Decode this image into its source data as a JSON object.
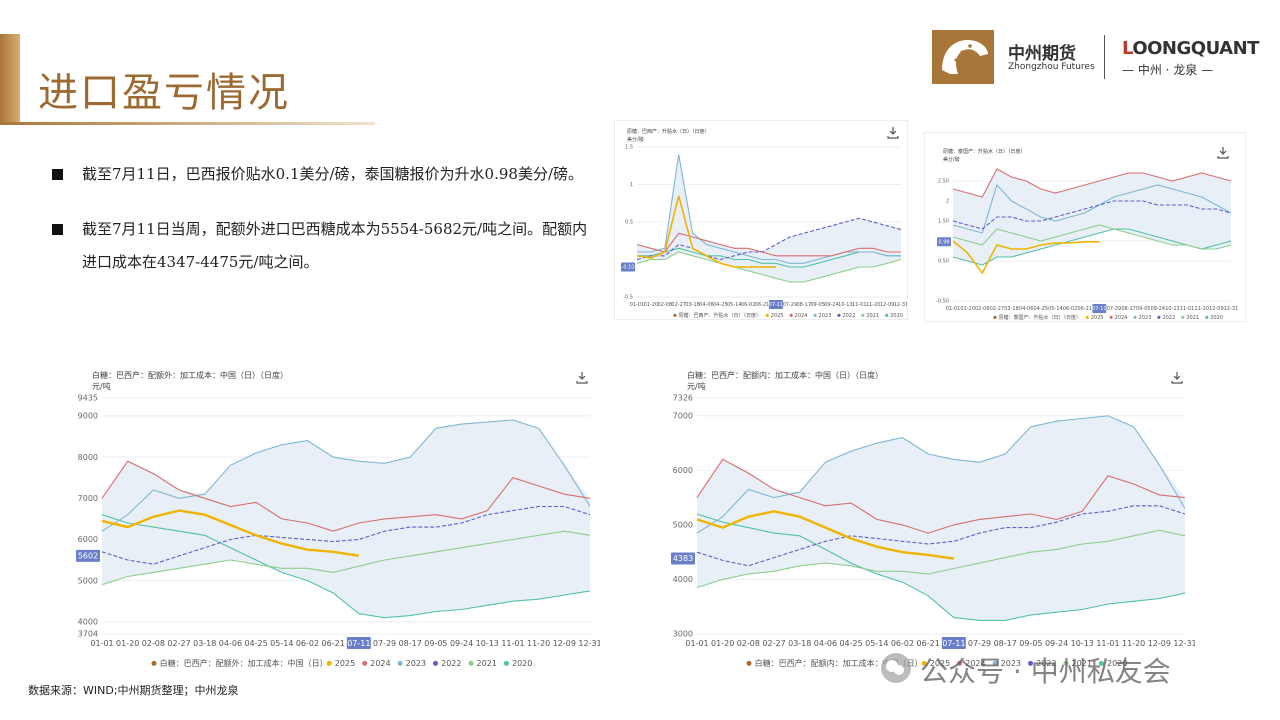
{
  "title": "进口盈亏情况",
  "brand": {
    "cn": "中州期货",
    "en": "Zhongzhou Futures",
    "lq_first": "L",
    "lq_rest": "OONGQUANT",
    "lq_cn": "— 中州 · 龙泉 —"
  },
  "bullets": [
    "截至7月11日，巴西报价贴水0.1美分/磅，泰国糖报价为升水0.98美分/磅。",
    "截至7月11日当周，配额外进口巴西糖成本为5554-5682元/吨之间。配额内进口成本在4347-4475元/吨之间。"
  ],
  "source": "数据来源：WIND;中州期货整理；中州龙泉",
  "wechat": "公众号 · 中州私友会",
  "colors": {
    "2025": "#f0b400",
    "2024": "#d86f6f",
    "2023": "#7fb7d4",
    "2022": "#5f5fc8",
    "2021": "#8ccf8c",
    "2020": "#4fc2a8",
    "band": "#e4ebf5",
    "accent": "#a9763a"
  },
  "chart_data": [
    {
      "type": "line",
      "title": "原糖：巴西产：升贴水（日）（日度）",
      "ylabel": "美分/磅",
      "ylim": [
        -0.5,
        1.5
      ],
      "yticks": [
        "1.5",
        "1",
        "0.5",
        "-0.5"
      ],
      "current_value": "-0.10",
      "current_date": "07-11",
      "x_labels": [
        "01-01",
        "01-20",
        "02-08",
        "02-27",
        "03-18",
        "04-06",
        "04-25",
        "05-14",
        "06-02",
        "06-21",
        "07-11",
        "07-29",
        "08-17",
        "09-05",
        "09-24",
        "10-13",
        "11-01",
        "11-20",
        "12-09",
        "12-31"
      ],
      "series": [
        {
          "name": "2025",
          "values": [
            0.05,
            0.02,
            0.1,
            0.85,
            0.15,
            0.05,
            -0.05,
            -0.1,
            -0.1,
            -0.1,
            -0.1
          ]
        },
        {
          "name": "2024",
          "values": [
            0.2,
            0.15,
            0.1,
            0.35,
            0.3,
            0.25,
            0.2,
            0.15,
            0.15,
            0.1,
            0.05,
            0.05,
            0.05,
            0.05,
            0.05,
            0.1,
            0.15,
            0.15,
            0.1,
            0.1
          ]
        },
        {
          "name": "2023",
          "values": [
            0.1,
            0.1,
            0.15,
            1.4,
            0.35,
            0.2,
            0.15,
            0.1,
            0.05,
            0.0,
            0.0,
            -0.05,
            -0.05,
            0.0,
            0.05,
            0.1,
            0.1,
            0.1,
            0.05,
            0.05
          ]
        },
        {
          "name": "2022",
          "values": [
            0.0,
            0.05,
            0.05,
            0.2,
            0.15,
            0.05,
            0.0,
            0.05,
            0.1,
            0.1,
            0.2,
            0.3,
            0.35,
            0.4,
            0.45,
            0.5,
            0.55,
            0.5,
            0.45,
            0.4
          ]
        },
        {
          "name": "2021",
          "values": [
            -0.05,
            0.0,
            0.0,
            0.1,
            0.05,
            0.0,
            -0.05,
            -0.1,
            -0.15,
            -0.2,
            -0.25,
            -0.3,
            -0.3,
            -0.25,
            -0.2,
            -0.15,
            -0.1,
            -0.1,
            -0.05,
            0.0
          ]
        },
        {
          "name": "2020",
          "values": [
            0.05,
            0.05,
            0.1,
            0.15,
            0.1,
            0.05,
            0.05,
            0.0,
            0.0,
            -0.05,
            -0.05,
            -0.1,
            -0.1,
            -0.05,
            0.0,
            0.05,
            0.1,
            0.1,
            0.05,
            0.05
          ]
        }
      ]
    },
    {
      "type": "line",
      "title": "原糖：泰国产：升贴水（日）（日度）",
      "ylabel": "美分/磅",
      "ylim": [
        -0.5,
        3
      ],
      "yticks": [
        "2.50",
        "2",
        "1.50",
        "1",
        "0.50",
        "-0.50"
      ],
      "current_value": "0.98",
      "current_date": "07-11",
      "x_labels": [
        "01-01",
        "01-20",
        "02-08",
        "02-27",
        "03-18",
        "04-06",
        "04-25",
        "05-14",
        "06-02",
        "06-21",
        "07-11",
        "07-29",
        "08-17",
        "09-05",
        "09-24",
        "10-13",
        "11-01",
        "11-20",
        "12-09",
        "12-31"
      ],
      "series": [
        {
          "name": "2025",
          "values": [
            1.0,
            0.7,
            0.2,
            0.9,
            0.8,
            0.8,
            0.9,
            0.95,
            0.95,
            0.98,
            0.98
          ]
        },
        {
          "name": "2024",
          "values": [
            2.3,
            2.2,
            2.1,
            2.8,
            2.6,
            2.5,
            2.3,
            2.2,
            2.3,
            2.4,
            2.5,
            2.6,
            2.7,
            2.7,
            2.6,
            2.5,
            2.6,
            2.7,
            2.6,
            2.5
          ]
        },
        {
          "name": "2023",
          "values": [
            1.4,
            1.3,
            1.2,
            2.4,
            2.0,
            1.8,
            1.6,
            1.5,
            1.6,
            1.7,
            1.9,
            2.1,
            2.2,
            2.3,
            2.4,
            2.3,
            2.2,
            2.1,
            1.9,
            1.7
          ]
        },
        {
          "name": "2022",
          "values": [
            1.5,
            1.4,
            1.3,
            1.6,
            1.6,
            1.5,
            1.5,
            1.6,
            1.7,
            1.8,
            1.9,
            2.0,
            2.0,
            2.0,
            1.9,
            1.9,
            1.9,
            1.8,
            1.8,
            1.7
          ]
        },
        {
          "name": "2021",
          "values": [
            1.1,
            1.0,
            0.9,
            1.3,
            1.2,
            1.1,
            1.0,
            1.1,
            1.2,
            1.3,
            1.4,
            1.3,
            1.2,
            1.1,
            1.0,
            0.9,
            0.9,
            0.8,
            0.8,
            0.9
          ]
        },
        {
          "name": "2020",
          "values": [
            0.6,
            0.5,
            0.4,
            0.6,
            0.6,
            0.7,
            0.8,
            0.9,
            1.0,
            1.1,
            1.2,
            1.3,
            1.3,
            1.2,
            1.1,
            1.0,
            0.9,
            0.8,
            0.9,
            1.0
          ]
        }
      ]
    },
    {
      "type": "line",
      "title": "白糖：巴西产：配额外：加工成本：中国（日）（日度）",
      "ylabel": "元/吨",
      "ylim": [
        3704,
        9435
      ],
      "yticks": [
        "9435",
        "9000",
        "8000",
        "7000",
        "6000",
        "5000",
        "4000",
        "3704"
      ],
      "current_value": "5602",
      "current_date": "07-11",
      "x_labels": [
        "01-01",
        "01-20",
        "02-08",
        "02-27",
        "03-18",
        "04-06",
        "04-25",
        "05-14",
        "06-02",
        "06-21",
        "07-11",
        "07-29",
        "08-17",
        "09-05",
        "09-24",
        "10-13",
        "11-01",
        "11-20",
        "12-09",
        "12-31"
      ],
      "legend": [
        "白糖：巴西产：配额外：加工成本：中国（日）",
        "2025",
        "2024",
        "2023",
        "2022",
        "2021",
        "2020"
      ],
      "series": [
        {
          "name": "2025",
          "values": [
            6450,
            6300,
            6550,
            6700,
            6600,
            6350,
            6100,
            5900,
            5750,
            5700,
            5602
          ]
        },
        {
          "name": "2024",
          "values": [
            7000,
            7900,
            7600,
            7200,
            7000,
            6800,
            6900,
            6500,
            6400,
            6200,
            6400,
            6500,
            6550,
            6600,
            6500,
            6700,
            7500,
            7300,
            7100,
            7000
          ]
        },
        {
          "name": "2023",
          "values": [
            6200,
            6600,
            7200,
            7000,
            7100,
            7800,
            8100,
            8300,
            8400,
            8000,
            7900,
            7850,
            8000,
            8700,
            8800,
            8850,
            8900,
            8700,
            7800,
            6800
          ]
        },
        {
          "name": "2022",
          "values": [
            5700,
            5500,
            5400,
            5600,
            5800,
            6000,
            6100,
            6050,
            6000,
            5950,
            6000,
            6200,
            6300,
            6300,
            6400,
            6600,
            6700,
            6800,
            6800,
            6600
          ]
        },
        {
          "name": "2021",
          "values": [
            4900,
            5100,
            5200,
            5300,
            5400,
            5500,
            5400,
            5300,
            5300,
            5200,
            5350,
            5500,
            5600,
            5700,
            5800,
            5900,
            6000,
            6100,
            6200,
            6100
          ]
        },
        {
          "name": "2020",
          "values": [
            6600,
            6400,
            6300,
            6200,
            6100,
            5800,
            5500,
            5200,
            5000,
            4700,
            4200,
            4100,
            4150,
            4250,
            4300,
            4400,
            4500,
            4550,
            4650,
            4750
          ]
        }
      ]
    },
    {
      "type": "line",
      "title": "白糖：巴西产：配额内：加工成本：中国（日）（日度）",
      "ylabel": "元/吨",
      "ylim": [
        3000,
        7326
      ],
      "yticks": [
        "7326",
        "7000",
        "6000",
        "5000",
        "4000",
        "3000"
      ],
      "current_value": "4383",
      "current_date": "07-11",
      "x_labels": [
        "01-01",
        "01-20",
        "02-08",
        "02-27",
        "03-18",
        "04-06",
        "04-25",
        "05-14",
        "06-02",
        "06-21",
        "07-11",
        "07-29",
        "08-17",
        "09-05",
        "09-24",
        "10-13",
        "11-01",
        "11-20",
        "12-09",
        "12-31"
      ],
      "legend": [
        "白糖：巴西产：配额内：加工成本：中国（日）",
        "2025",
        "2024",
        "2023",
        "2022",
        "2021",
        "2020"
      ],
      "series": [
        {
          "name": "2025",
          "values": [
            5100,
            4950,
            5150,
            5250,
            5150,
            4950,
            4750,
            4600,
            4500,
            4450,
            4383
          ]
        },
        {
          "name": "2024",
          "values": [
            5500,
            6200,
            5950,
            5650,
            5500,
            5350,
            5400,
            5100,
            5000,
            4850,
            5000,
            5100,
            5150,
            5200,
            5100,
            5250,
            5900,
            5750,
            5550,
            5500
          ]
        },
        {
          "name": "2023",
          "values": [
            4850,
            5150,
            5650,
            5500,
            5600,
            6150,
            6350,
            6500,
            6600,
            6300,
            6200,
            6150,
            6300,
            6800,
            6900,
            6950,
            7000,
            6800,
            6100,
            5300
          ]
        },
        {
          "name": "2022",
          "values": [
            4500,
            4350,
            4250,
            4400,
            4550,
            4700,
            4800,
            4750,
            4700,
            4650,
            4700,
            4850,
            4950,
            4950,
            5050,
            5200,
            5250,
            5350,
            5350,
            5200
          ]
        },
        {
          "name": "2021",
          "values": [
            3850,
            4000,
            4100,
            4150,
            4250,
            4300,
            4250,
            4150,
            4150,
            4100,
            4200,
            4300,
            4400,
            4500,
            4550,
            4650,
            4700,
            4800,
            4900,
            4800
          ]
        },
        {
          "name": "2020",
          "values": [
            5200,
            5050,
            4950,
            4850,
            4800,
            4550,
            4300,
            4100,
            3950,
            3700,
            3300,
            3250,
            3250,
            3350,
            3400,
            3450,
            3550,
            3600,
            3650,
            3750
          ]
        }
      ]
    }
  ]
}
